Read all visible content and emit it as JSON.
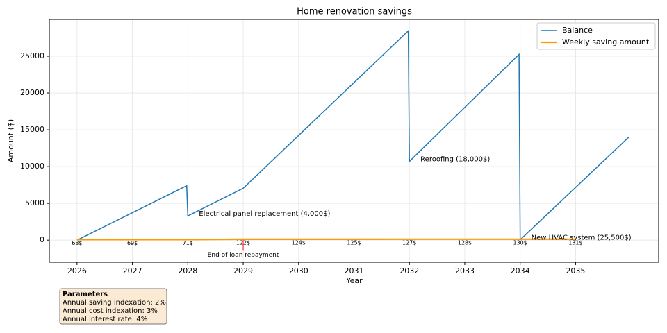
{
  "chart_data": {
    "type": "line",
    "title": "Home renovation savings",
    "x_label": "Year",
    "y_label": "Amount ($)",
    "xlim": [
      2025.5,
      2036.5
    ],
    "xticks": [
      2026,
      2027,
      2028,
      2029,
      2030,
      2031,
      2032,
      2033,
      2034,
      2035
    ],
    "ylim": [
      -3000,
      30000
    ],
    "yticks": [
      0,
      5000,
      10000,
      15000,
      20000,
      25000
    ],
    "grid": true,
    "legend": "upper right",
    "series": [
      {
        "name": "Balance",
        "color": "#1f77b4",
        "x": [
          2026,
          2027.98,
          2028,
          2029,
          2031.98,
          2032,
          2033.98,
          2034,
          2035.96
        ],
        "values": [
          0,
          7400,
          3300,
          7050,
          28450,
          10700,
          25250,
          50,
          14000
        ]
      },
      {
        "name": "Weekly saving amount",
        "color": "#ff9900",
        "x": [
          2026,
          2027,
          2028,
          2029,
          2030,
          2031,
          2032,
          2033,
          2034,
          2035
        ],
        "values": [
          68,
          69,
          71,
          122,
          124,
          125,
          127,
          128,
          130,
          131
        ],
        "value_labels": [
          "68$",
          "69$",
          "71$",
          "122$",
          "124$",
          "125$",
          "127$",
          "128$",
          "130$",
          "131$"
        ]
      }
    ],
    "annotations": [
      {
        "text": "Electrical panel replacement (4,000$)",
        "x": 2028.2,
        "y": 3600,
        "color": "#1f77b4"
      },
      {
        "text": "Reroofing (18,000$)",
        "x": 2032.2,
        "y": 11000,
        "color": "#1f77b4"
      },
      {
        "text": "New HVAC system (25,500$)",
        "x": 2034.2,
        "y": 350,
        "color": "#1f77b4"
      },
      {
        "text": "End of loan repayment",
        "x": 2029,
        "y": -2000,
        "color": "#ff0000"
      }
    ],
    "parameters_box": {
      "title": "Parameters",
      "lines": [
        "Annual saving indexation: 2%",
        "Annual cost indexation: 3%",
        "Annual interest rate: 4%"
      ]
    }
  }
}
